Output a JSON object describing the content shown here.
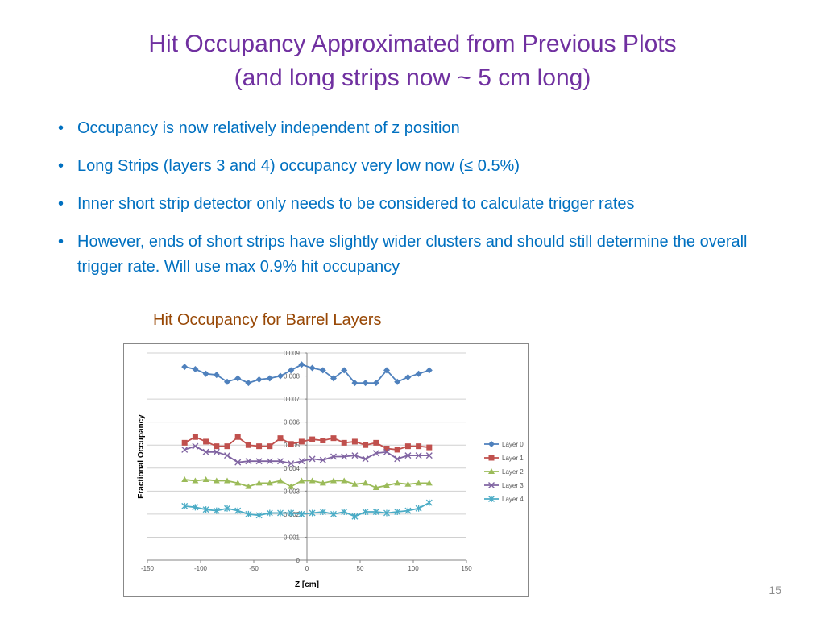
{
  "slide": {
    "title_line1": "Hit Occupancy Approximated from Previous Plots",
    "title_line2": "(and long strips now ~ 5 cm long)",
    "bullets": [
      "Occupancy is now relatively independent of z position",
      "Long Strips (layers 3 and 4) occupancy very low now (≤ 0.5%)",
      "Inner short strip detector only needs to be considered to calculate trigger rates",
      "However, ends of short strips have slightly wider clusters and should still determine the overall trigger rate. Will use max 0.9% hit occupancy"
    ],
    "chart_caption": "Hit Occupancy for Barrel Layers",
    "page_number": "15"
  },
  "chart_data": {
    "type": "line",
    "title": "",
    "xlabel": "Z [cm]",
    "ylabel": "Fractional Occupancy",
    "xlim": [
      -150,
      150
    ],
    "ylim": [
      0,
      0.009
    ],
    "xticks": [
      -150,
      -100,
      -50,
      0,
      50,
      100,
      150
    ],
    "yticks": [
      0,
      0.001,
      0.002,
      0.003,
      0.004,
      0.005,
      0.006,
      0.007,
      0.008,
      0.009
    ],
    "x": [
      -115,
      -105,
      -95,
      -85,
      -75,
      -65,
      -55,
      -45,
      -35,
      -25,
      -15,
      -5,
      5,
      15,
      25,
      35,
      45,
      55,
      65,
      75,
      85,
      95,
      105,
      115
    ],
    "legend_position": "right",
    "grid": "horizontal",
    "series": [
      {
        "name": "Layer 0",
        "color": "#4f81bd",
        "marker": "diamond",
        "values": [
          0.0084,
          0.0083,
          0.0081,
          0.00805,
          0.00775,
          0.0079,
          0.0077,
          0.00785,
          0.0079,
          0.008,
          0.00825,
          0.0085,
          0.00835,
          0.00825,
          0.0079,
          0.00825,
          0.0077,
          0.0077,
          0.0077,
          0.00825,
          0.00775,
          0.00795,
          0.0081,
          0.00825
        ]
      },
      {
        "name": "Layer 1",
        "color": "#c0504d",
        "marker": "square",
        "values": [
          0.0051,
          0.00535,
          0.00515,
          0.00495,
          0.00495,
          0.00535,
          0.005,
          0.00495,
          0.00495,
          0.0053,
          0.00505,
          0.00515,
          0.00525,
          0.0052,
          0.0053,
          0.0051,
          0.00515,
          0.005,
          0.0051,
          0.00485,
          0.0048,
          0.00495,
          0.00495,
          0.0049
        ]
      },
      {
        "name": "Layer 2",
        "color": "#9bbb59",
        "marker": "triangle",
        "values": [
          0.0035,
          0.00345,
          0.0035,
          0.00345,
          0.00345,
          0.00335,
          0.0032,
          0.00335,
          0.00335,
          0.00345,
          0.0032,
          0.00345,
          0.00345,
          0.00335,
          0.00345,
          0.00345,
          0.0033,
          0.00335,
          0.00315,
          0.00325,
          0.00335,
          0.0033,
          0.00335,
          0.00335
        ]
      },
      {
        "name": "Layer 3",
        "color": "#8064a2",
        "marker": "x",
        "values": [
          0.0048,
          0.00495,
          0.0047,
          0.0047,
          0.00455,
          0.00425,
          0.0043,
          0.0043,
          0.0043,
          0.0043,
          0.0042,
          0.0043,
          0.0044,
          0.00435,
          0.0045,
          0.0045,
          0.00455,
          0.0044,
          0.00465,
          0.0047,
          0.0044,
          0.00455,
          0.00455,
          0.00455
        ]
      },
      {
        "name": "Layer 4",
        "color": "#4bacc6",
        "marker": "star",
        "values": [
          0.00235,
          0.0023,
          0.0022,
          0.00215,
          0.00225,
          0.00215,
          0.002,
          0.00195,
          0.00205,
          0.00205,
          0.00205,
          0.002,
          0.00205,
          0.0021,
          0.002,
          0.0021,
          0.0019,
          0.0021,
          0.0021,
          0.00205,
          0.0021,
          0.00215,
          0.00225,
          0.0025
        ]
      }
    ]
  }
}
